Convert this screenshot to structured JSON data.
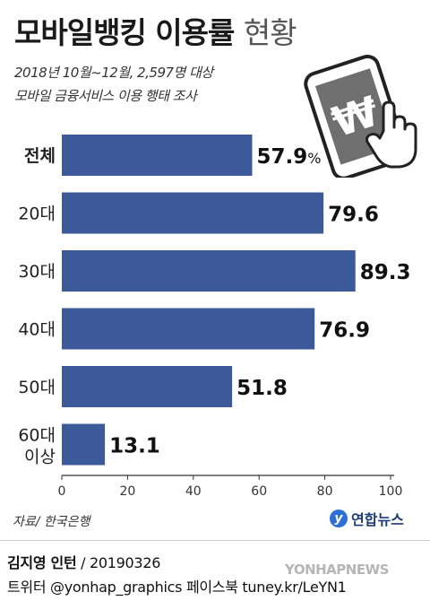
{
  "header": {
    "title": "모바일뱅킹 이용률",
    "title_suffix": "현황",
    "subtitle_line1": "2018년 10월~12월, 2,597명 대상",
    "subtitle_line2": "모바일 금융서비스 이용 행태 조사"
  },
  "chart_data": {
    "type": "bar",
    "orientation": "horizontal",
    "categories": [
      "전체",
      "20대",
      "30대",
      "40대",
      "50대",
      "60대 이상"
    ],
    "values": [
      57.9,
      79.6,
      89.3,
      76.9,
      51.8,
      13.1
    ],
    "value_labels": [
      "57.9%",
      "79.6",
      "89.3",
      "76.9",
      "51.8",
      "13.1"
    ],
    "xlim": [
      0,
      100
    ],
    "x_ticks": [
      0,
      20,
      40,
      60,
      80,
      100
    ],
    "bar_color": "#3c5a9a",
    "grid": false
  },
  "footer": {
    "source": "자료/ 한국은행",
    "logo_text": "연합뉴스",
    "credit_name": "김지영 인턴",
    "credit_date": " / 20190326",
    "credit_social": "트위터 @yonhap_graphics  페이스북 tuney.kr/LeYN1",
    "watermark": "YONHAPNEWS"
  },
  "illustration": {
    "icon": "smartphone-with-won-and-hand-cursor"
  }
}
